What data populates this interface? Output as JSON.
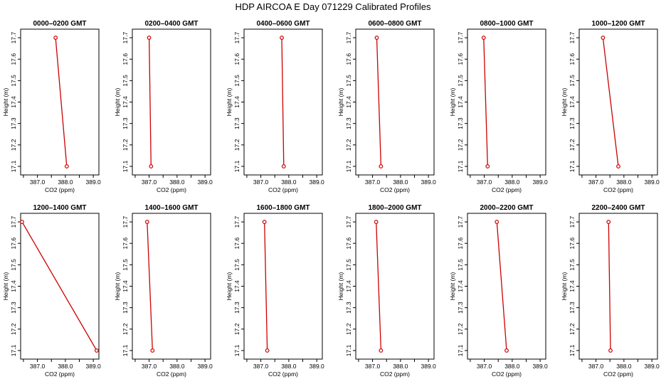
{
  "title": "HDP AIRCOA E  Day 071229  Calibrated Profiles",
  "colors": {
    "series": "#cc0000",
    "axis": "#000000"
  },
  "chart_data": [
    {
      "type": "line",
      "title": "0000–0200 GMT",
      "xlabel": "CO2 (ppm)",
      "ylabel": "Height (m)",
      "x_ticks": [
        "387.0",
        "388.0",
        "389.0"
      ],
      "y_ticks": [
        "17.1",
        "17.2",
        "17.3",
        "17.4",
        "17.5",
        "17.6",
        "17.7"
      ],
      "xlim": [
        386.4,
        389.2
      ],
      "ylim": [
        17.06,
        17.74
      ],
      "points": [
        {
          "x": 387.65,
          "y": 17.7
        },
        {
          "x": 388.05,
          "y": 17.1
        }
      ]
    },
    {
      "type": "line",
      "title": "0200–0400 GMT",
      "xlabel": "CO2 (ppm)",
      "ylabel": "Height (m)",
      "x_ticks": [
        "387.0",
        "388.0",
        "389.0"
      ],
      "y_ticks": [
        "17.1",
        "17.2",
        "17.3",
        "17.4",
        "17.5",
        "17.6",
        "17.7"
      ],
      "xlim": [
        386.4,
        389.2
      ],
      "ylim": [
        17.06,
        17.74
      ],
      "points": [
        {
          "x": 387.0,
          "y": 17.7
        },
        {
          "x": 387.07,
          "y": 17.1
        }
      ]
    },
    {
      "type": "line",
      "title": "0400–0600 GMT",
      "xlabel": "CO2 (ppm)",
      "ylabel": "Height (m)",
      "x_ticks": [
        "387.0",
        "388.0",
        "389.0"
      ],
      "y_ticks": [
        "17.1",
        "17.2",
        "17.3",
        "17.4",
        "17.5",
        "17.6",
        "17.7"
      ],
      "xlim": [
        386.4,
        389.2
      ],
      "ylim": [
        17.06,
        17.74
      ],
      "points": [
        {
          "x": 387.75,
          "y": 17.7
        },
        {
          "x": 387.82,
          "y": 17.1
        }
      ]
    },
    {
      "type": "line",
      "title": "0600–0800 GMT",
      "xlabel": "CO2 (ppm)",
      "ylabel": "Height (m)",
      "x_ticks": [
        "387.0",
        "388.0",
        "389.0"
      ],
      "y_ticks": [
        "17.1",
        "17.2",
        "17.3",
        "17.4",
        "17.5",
        "17.6",
        "17.7"
      ],
      "xlim": [
        386.4,
        389.2
      ],
      "ylim": [
        17.06,
        17.74
      ],
      "points": [
        {
          "x": 387.15,
          "y": 17.7
        },
        {
          "x": 387.3,
          "y": 17.1
        }
      ]
    },
    {
      "type": "line",
      "title": "0800–1000 GMT",
      "xlabel": "CO2 (ppm)",
      "ylabel": "Height (m)",
      "x_ticks": [
        "387.0",
        "388.0",
        "389.0"
      ],
      "y_ticks": [
        "17.1",
        "17.2",
        "17.3",
        "17.4",
        "17.5",
        "17.6",
        "17.7"
      ],
      "xlim": [
        386.4,
        389.2
      ],
      "ylim": [
        17.06,
        17.74
      ],
      "points": [
        {
          "x": 386.98,
          "y": 17.7
        },
        {
          "x": 387.12,
          "y": 17.1
        }
      ]
    },
    {
      "type": "line",
      "title": "1000–1200 GMT",
      "xlabel": "CO2 (ppm)",
      "ylabel": "Height (m)",
      "x_ticks": [
        "387.0",
        "388.0",
        "389.0"
      ],
      "y_ticks": [
        "17.1",
        "17.2",
        "17.3",
        "17.4",
        "17.5",
        "17.6",
        "17.7"
      ],
      "xlim": [
        386.4,
        389.2
      ],
      "ylim": [
        17.06,
        17.74
      ],
      "points": [
        {
          "x": 387.25,
          "y": 17.7
        },
        {
          "x": 387.8,
          "y": 17.1
        }
      ]
    },
    {
      "type": "line",
      "title": "1200–1400 GMT",
      "xlabel": "CO2 (ppm)",
      "ylabel": "Height (m)",
      "x_ticks": [
        "387.0",
        "388.0",
        "389.0"
      ],
      "y_ticks": [
        "17.1",
        "17.2",
        "17.3",
        "17.4",
        "17.5",
        "17.6",
        "17.7"
      ],
      "xlim": [
        386.4,
        389.2
      ],
      "ylim": [
        17.06,
        17.74
      ],
      "points": [
        {
          "x": 386.45,
          "y": 17.7
        },
        {
          "x": 389.12,
          "y": 17.1
        }
      ]
    },
    {
      "type": "line",
      "title": "1400–1600 GMT",
      "xlabel": "CO2 (ppm)",
      "ylabel": "Height (m)",
      "x_ticks": [
        "387.0",
        "388.0",
        "389.0"
      ],
      "y_ticks": [
        "17.1",
        "17.2",
        "17.3",
        "17.4",
        "17.5",
        "17.6",
        "17.7"
      ],
      "xlim": [
        386.4,
        389.2
      ],
      "ylim": [
        17.06,
        17.74
      ],
      "points": [
        {
          "x": 386.93,
          "y": 17.7
        },
        {
          "x": 387.12,
          "y": 17.1
        }
      ]
    },
    {
      "type": "line",
      "title": "1600–1800 GMT",
      "xlabel": "CO2 (ppm)",
      "ylabel": "Height (m)",
      "x_ticks": [
        "387.0",
        "388.0",
        "389.0"
      ],
      "y_ticks": [
        "17.1",
        "17.2",
        "17.3",
        "17.4",
        "17.5",
        "17.6",
        "17.7"
      ],
      "xlim": [
        386.4,
        389.2
      ],
      "ylim": [
        17.06,
        17.74
      ],
      "points": [
        {
          "x": 387.13,
          "y": 17.7
        },
        {
          "x": 387.23,
          "y": 17.1
        }
      ]
    },
    {
      "type": "line",
      "title": "1800–2000 GMT",
      "xlabel": "CO2 (ppm)",
      "ylabel": "Height (m)",
      "x_ticks": [
        "387.0",
        "388.0",
        "389.0"
      ],
      "y_ticks": [
        "17.1",
        "17.2",
        "17.3",
        "17.4",
        "17.5",
        "17.6",
        "17.7"
      ],
      "xlim": [
        386.4,
        389.2
      ],
      "ylim": [
        17.06,
        17.74
      ],
      "points": [
        {
          "x": 387.13,
          "y": 17.7
        },
        {
          "x": 387.3,
          "y": 17.1
        }
      ]
    },
    {
      "type": "line",
      "title": "2000–2200 GMT",
      "xlabel": "CO2 (ppm)",
      "ylabel": "Height (m)",
      "x_ticks": [
        "387.0",
        "388.0",
        "389.0"
      ],
      "y_ticks": [
        "17.1",
        "17.2",
        "17.3",
        "17.4",
        "17.5",
        "17.6",
        "17.7"
      ],
      "xlim": [
        386.4,
        389.2
      ],
      "ylim": [
        17.06,
        17.74
      ],
      "points": [
        {
          "x": 387.45,
          "y": 17.7
        },
        {
          "x": 387.8,
          "y": 17.1
        }
      ]
    },
    {
      "type": "line",
      "title": "2200–2400 GMT",
      "xlabel": "CO2 (ppm)",
      "ylabel": "Height (m)",
      "x_ticks": [
        "387.0",
        "388.0",
        "389.0"
      ],
      "y_ticks": [
        "17.1",
        "17.2",
        "17.3",
        "17.4",
        "17.5",
        "17.6",
        "17.7"
      ],
      "xlim": [
        386.4,
        389.2
      ],
      "ylim": [
        17.06,
        17.74
      ],
      "points": [
        {
          "x": 387.45,
          "y": 17.7
        },
        {
          "x": 387.52,
          "y": 17.1
        }
      ]
    }
  ]
}
